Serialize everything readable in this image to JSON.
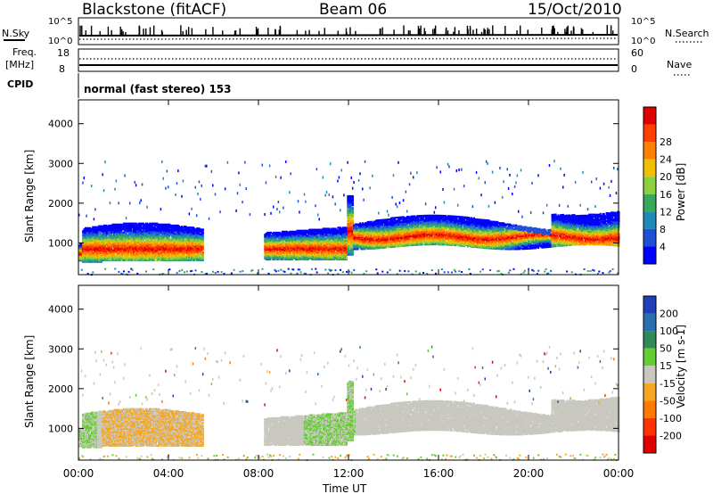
{
  "header": {
    "station": "Blackstone (fitACF)",
    "beam": "Beam 06",
    "date": "15/Oct/2010"
  },
  "top_panels": {
    "nsky_label": "N.Sky",
    "nsky_ticks": [
      "10^5",
      "10^0"
    ],
    "nsearch_label": "N.Search",
    "freq_label_1": "Freq.",
    "freq_label_2": "[MHz]",
    "freq_ticks": [
      "18",
      "8"
    ],
    "nave_ticks": [
      "60",
      "0"
    ],
    "nave_label": "Nave",
    "cpid_label": "CPID",
    "cpid_text": "normal (fast stereo) 153"
  },
  "colors": {
    "power": [
      "#0000ff",
      "#1f4fd8",
      "#1e8ab8",
      "#3aa85a",
      "#8cd040",
      "#f0c000",
      "#ff8000",
      "#ff4000",
      "#e00000"
    ],
    "velocity": [
      "#1f3fb8",
      "#2c6fb0",
      "#2e8b57",
      "#66cc33",
      "#c8c8c0",
      "#f5a623",
      "#ff7a00",
      "#ff3300",
      "#e00000"
    ],
    "grey": "#c8c8c0"
  },
  "chart_data": [
    {
      "type": "heatmap",
      "name": "power-panel",
      "ylabel": "Slant Range [km]",
      "ylim": [
        200,
        4600
      ],
      "yticks": [
        "1000",
        "2000",
        "3000",
        "4000"
      ],
      "colorbar_label": "Power [dB]",
      "colorbar_ticks": [
        "4",
        "8",
        "12",
        "16",
        "20",
        "24",
        "28"
      ],
      "xlim": [
        "00:00",
        "24:00"
      ],
      "features": [
        {
          "time_range": [
            "00:00",
            "05:30"
          ],
          "range_km": [
            500,
            1550
          ],
          "peak_db": 24
        },
        {
          "time_range": [
            "08:30",
            "11:50"
          ],
          "range_km": [
            550,
            1250
          ],
          "peak_db": 28
        },
        {
          "time_range": [
            "12:00",
            "24:00"
          ],
          "range_km": [
            800,
            2100
          ],
          "peak_db": 28
        }
      ]
    },
    {
      "type": "heatmap",
      "name": "velocity-panel",
      "ylabel": "Slant Range [km]",
      "ylim": [
        200,
        4600
      ],
      "yticks": [
        "1000",
        "2000",
        "3000",
        "4000"
      ],
      "colorbar_label": "Velocity [m s-1]",
      "colorbar_ticks": [
        "200",
        "100",
        "50",
        "15",
        "-15",
        "-50",
        "-100",
        "-200"
      ],
      "xlabel": "Time UT",
      "xticks": [
        "00:00",
        "04:00",
        "08:00",
        "12:00",
        "16:00",
        "20:00",
        "00:00"
      ],
      "xlim": [
        "00:00",
        "24:00"
      ]
    }
  ]
}
